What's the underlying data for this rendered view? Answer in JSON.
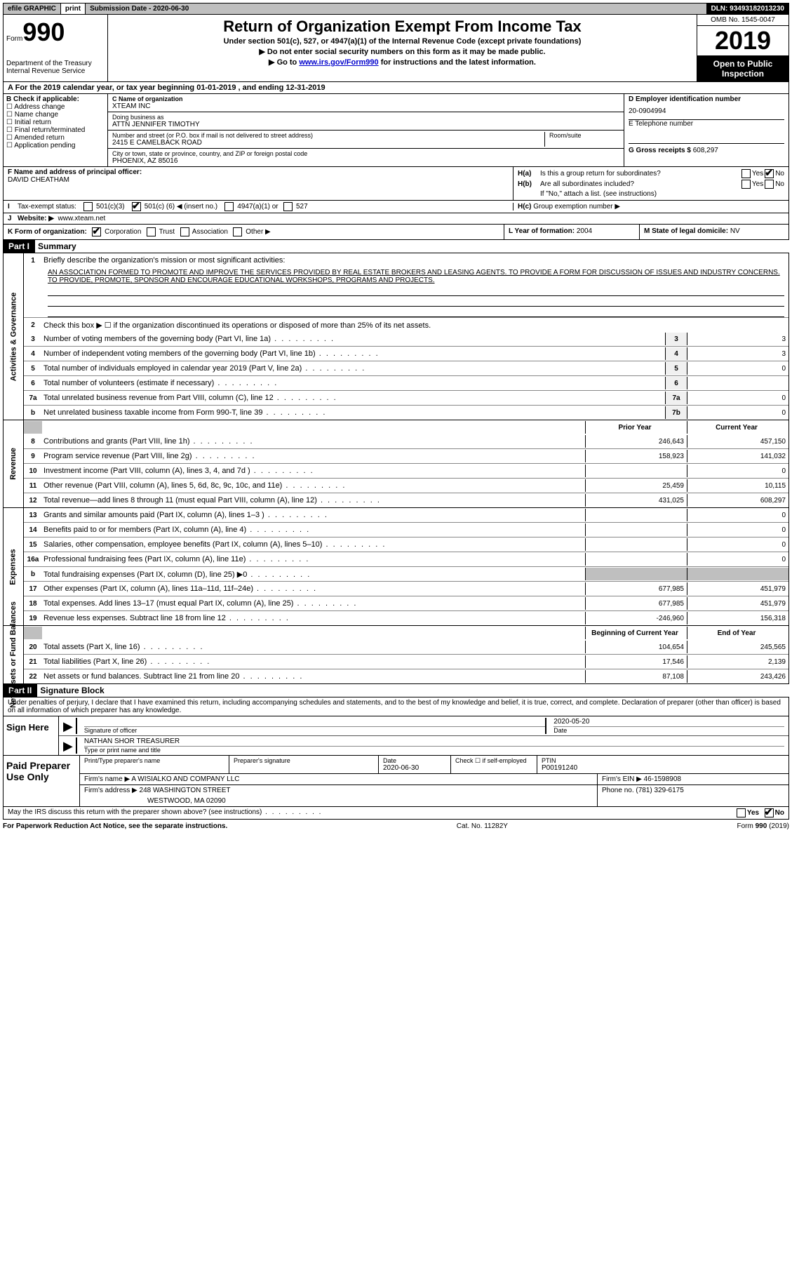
{
  "topbar": {
    "efile": "efile GRAPHIC",
    "print": "print",
    "submission": "Submission Date - 2020-06-30",
    "dln": "DLN: 93493182013230"
  },
  "header": {
    "form_prefix": "Form",
    "form_num": "990",
    "dept1": "Department of the Treasury",
    "dept2": "Internal Revenue Service",
    "title": "Return of Organization Exempt From Income Tax",
    "subtitle": "Under section 501(c), 527, or 4947(a)(1) of the Internal Revenue Code (except private foundations)",
    "note1": "▶ Do not enter social security numbers on this form as it may be made public.",
    "note2_pre": "▶ Go to ",
    "note2_link": "www.irs.gov/Form990",
    "note2_post": " for instructions and the latest information.",
    "omb": "OMB No. 1545-0047",
    "year": "2019",
    "open": "Open to Public Inspection"
  },
  "row_a": "For the 2019 calendar year, or tax year beginning 01-01-2019   , and ending 12-31-2019",
  "box_b": {
    "title": "B Check if applicable:",
    "items": [
      "Address change",
      "Name change",
      "Initial return",
      "Final return/terminated",
      "Amended return",
      "Application pending"
    ]
  },
  "box_c": {
    "name_lbl": "C Name of organization",
    "name": "XTEAM INC",
    "dba_lbl": "Doing business as",
    "dba": "ATTN JENNIFER TIMOTHY",
    "addr_lbl": "Number and street (or P.O. box if mail is not delivered to street address)",
    "room_lbl": "Room/suite",
    "addr": "2415 E CAMELBACK ROAD",
    "city_lbl": "City or town, state or province, country, and ZIP or foreign postal code",
    "city": "PHOENIX, AZ  85016"
  },
  "box_d": {
    "ein_lbl": "D Employer identification number",
    "ein": "20-0904994",
    "tel_lbl": "E Telephone number",
    "tel": "",
    "gross_lbl": "G Gross receipts $",
    "gross": "608,297"
  },
  "box_f": {
    "lbl": "F  Name and address of principal officer:",
    "name": "DAVID CHEATHAM"
  },
  "box_h": {
    "a_lbl": "Is this a group return for subordinates?",
    "a_yes": "Yes",
    "a_no": "No",
    "b_lbl": "Are all subordinates included?",
    "b_yes": "Yes",
    "b_no": "No",
    "b_note": "If \"No,\" attach a list. (see instructions)",
    "c_lbl": "Group exemption number ▶"
  },
  "status": {
    "lbl": "Tax-exempt status:",
    "opt1": "501(c)(3)",
    "opt2_pre": "501(c) (",
    "opt2_val": "6",
    "opt2_post": ") ◀ (insert no.)",
    "opt3": "4947(a)(1) or",
    "opt4": "527"
  },
  "website": {
    "lbl": "Website: ▶",
    "val": "www.xteam.net"
  },
  "row_k": {
    "lbl": "K Form of organization:",
    "opts": [
      "Corporation",
      "Trust",
      "Association",
      "Other ▶"
    ],
    "checked": 0
  },
  "row_l": {
    "lbl": "L Year of formation:",
    "val": "2004"
  },
  "row_m": {
    "lbl": "M State of legal domicile:",
    "val": "NV"
  },
  "part1": {
    "num": "Part I",
    "title": "Summary",
    "line1_lbl": "Briefly describe the organization's mission or most significant activities:",
    "mission": "AN ASSOCIATION FORMED TO PROMOTE AND IMPROVE THE SERVICES PROVIDED BY REAL ESTATE BROKERS AND LEASING AGENTS. TO PROVIDE A FORM FOR DISCUSSION OF ISSUES AND INDUSTRY CONCERNS. TO PROVIDE, PROMOTE, SPONSOR AND ENCOURAGE EDUCATIONAL WORKSHOPS, PROGRAMS AND PROJECTS.",
    "line2": "Check this box ▶ ☐  if the organization discontinued its operations or disposed of more than 25% of its net assets.",
    "gov_label": "Activities & Governance",
    "rev_label": "Revenue",
    "exp_label": "Expenses",
    "net_label": "Net Assets or Fund Balances",
    "lines_gov": [
      {
        "n": "3",
        "t": "Number of voting members of the governing body (Part VI, line 1a)",
        "box": "3",
        "v": "3"
      },
      {
        "n": "4",
        "t": "Number of independent voting members of the governing body (Part VI, line 1b)",
        "box": "4",
        "v": "3"
      },
      {
        "n": "5",
        "t": "Total number of individuals employed in calendar year 2019 (Part V, line 2a)",
        "box": "5",
        "v": "0"
      },
      {
        "n": "6",
        "t": "Total number of volunteers (estimate if necessary)",
        "box": "6",
        "v": ""
      },
      {
        "n": "7a",
        "t": "Total unrelated business revenue from Part VIII, column (C), line 12",
        "box": "7a",
        "v": "0"
      },
      {
        "n": "b",
        "t": "Net unrelated business taxable income from Form 990-T, line 39",
        "box": "7b",
        "v": "0"
      }
    ],
    "py_hdr": "Prior Year",
    "cy_hdr": "Current Year",
    "lines_rev": [
      {
        "n": "8",
        "t": "Contributions and grants (Part VIII, line 1h)",
        "py": "246,643",
        "cy": "457,150"
      },
      {
        "n": "9",
        "t": "Program service revenue (Part VIII, line 2g)",
        "py": "158,923",
        "cy": "141,032"
      },
      {
        "n": "10",
        "t": "Investment income (Part VIII, column (A), lines 3, 4, and 7d )",
        "py": "",
        "cy": "0"
      },
      {
        "n": "11",
        "t": "Other revenue (Part VIII, column (A), lines 5, 6d, 8c, 9c, 10c, and 11e)",
        "py": "25,459",
        "cy": "10,115"
      },
      {
        "n": "12",
        "t": "Total revenue—add lines 8 through 11 (must equal Part VIII, column (A), line 12)",
        "py": "431,025",
        "cy": "608,297"
      }
    ],
    "lines_exp": [
      {
        "n": "13",
        "t": "Grants and similar amounts paid (Part IX, column (A), lines 1–3 )",
        "py": "",
        "cy": "0"
      },
      {
        "n": "14",
        "t": "Benefits paid to or for members (Part IX, column (A), line 4)",
        "py": "",
        "cy": "0"
      },
      {
        "n": "15",
        "t": "Salaries, other compensation, employee benefits (Part IX, column (A), lines 5–10)",
        "py": "",
        "cy": "0"
      },
      {
        "n": "16a",
        "t": "Professional fundraising fees (Part IX, column (A), line 11e)",
        "py": "",
        "cy": "0"
      },
      {
        "n": "b",
        "t": "Total fundraising expenses (Part IX, column (D), line 25) ▶0",
        "py": "shaded",
        "cy": "shaded"
      },
      {
        "n": "17",
        "t": "Other expenses (Part IX, column (A), lines 11a–11d, 11f–24e)",
        "py": "677,985",
        "cy": "451,979"
      },
      {
        "n": "18",
        "t": "Total expenses. Add lines 13–17 (must equal Part IX, column (A), line 25)",
        "py": "677,985",
        "cy": "451,979"
      },
      {
        "n": "19",
        "t": "Revenue less expenses. Subtract line 18 from line 12",
        "py": "-246,960",
        "cy": "156,318"
      }
    ],
    "boy_hdr": "Beginning of Current Year",
    "eoy_hdr": "End of Year",
    "lines_net": [
      {
        "n": "20",
        "t": "Total assets (Part X, line 16)",
        "py": "104,654",
        "cy": "245,565"
      },
      {
        "n": "21",
        "t": "Total liabilities (Part X, line 26)",
        "py": "17,546",
        "cy": "2,139"
      },
      {
        "n": "22",
        "t": "Net assets or fund balances. Subtract line 21 from line 20",
        "py": "87,108",
        "cy": "243,426"
      }
    ]
  },
  "part2": {
    "num": "Part II",
    "title": "Signature Block",
    "penalty": "Under penalties of perjury, I declare that I have examined this return, including accompanying schedules and statements, and to the best of my knowledge and belief, it is true, correct, and complete. Declaration of preparer (other than officer) is based on all information of which preparer has any knowledge.",
    "sign_here": "Sign Here",
    "sig_officer": "Signature of officer",
    "sig_date_lbl": "Date",
    "sig_date": "2020-05-20",
    "name_title": "NATHAN SHOR TREASURER",
    "name_lbl": "Type or print name and title",
    "paid": "Paid Preparer Use Only",
    "prep_name_lbl": "Print/Type preparer's name",
    "prep_sig_lbl": "Preparer's signature",
    "prep_date_lbl": "Date",
    "prep_date": "2020-06-30",
    "self_emp": "Check ☐ if self-employed",
    "ptin_lbl": "PTIN",
    "ptin": "P00191240",
    "firm_name_lbl": "Firm's name    ▶",
    "firm_name": "A WISIALKO AND COMPANY LLC",
    "firm_ein_lbl": "Firm's EIN ▶",
    "firm_ein": "46-1598908",
    "firm_addr_lbl": "Firm's address ▶",
    "firm_addr": "248 WASHINGTON STREET",
    "firm_city": "WESTWOOD, MA  02090",
    "phone_lbl": "Phone no.",
    "phone": "(781) 329-6175",
    "discuss": "May the IRS discuss this return with the preparer shown above? (see instructions)",
    "yes": "Yes",
    "no": "No"
  },
  "footer": {
    "left": "For Paperwork Reduction Act Notice, see the separate instructions.",
    "mid": "Cat. No. 11282Y",
    "right": "Form 990 (2019)"
  }
}
